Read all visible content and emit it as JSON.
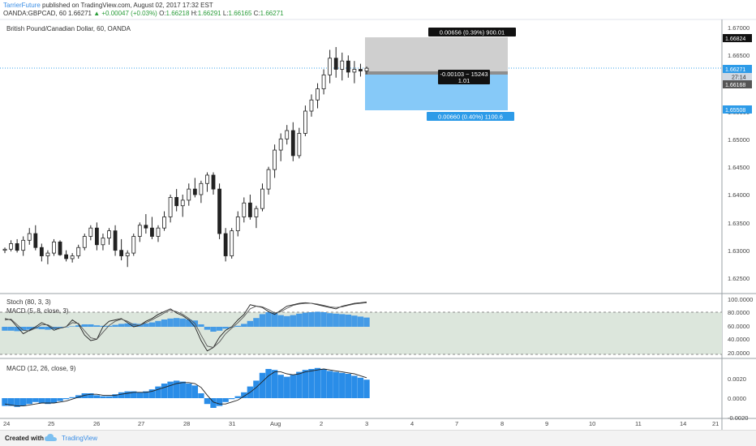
{
  "header": {
    "author": "TarrierFuture",
    "published_text": "published on TradingView.com, August 02, 2017 17:32 EST",
    "symbol_line": "OANDA:GBPCAD, 60",
    "last_price": "1.66271",
    "change": "▲ +0.00047 (+0.03%)",
    "open_label": "O:",
    "open": "1.66218",
    "high_label": "H:",
    "high": "1.66291",
    "low_label": "L:",
    "low": "1.66165",
    "close_label": "C:",
    "close": "1.66271"
  },
  "main_pane": {
    "title": "British Pound/Canadian Dollar, 60, OANDA",
    "price_ticks": [
      "1.67000",
      "1.66500",
      "1.65500",
      "1.65000",
      "1.64500",
      "1.64000",
      "1.63500",
      "1.63000",
      "1.62500"
    ],
    "price_tick_values": [
      1.67,
      1.665,
      1.655,
      1.65,
      1.645,
      1.64,
      1.635,
      1.63,
      1.625
    ],
    "tags": {
      "target": "1.66824",
      "current": "1.66271",
      "countdown": "27:14",
      "entry": "1.66168",
      "stop": "1.65508"
    },
    "position_tool": {
      "profit_label": "0.00656 (0.39%) 900.01",
      "center_label_1": "-0.00103 ~ 15243",
      "center_label_2": "1.01",
      "loss_label": "0.00660 (0.40%) 1100.6"
    }
  },
  "stoch_pane": {
    "title": "Stoch (80, 3, 3)",
    "sub_title": "MACD (5, 8, close, 3)",
    "ticks": [
      "100.0000",
      "80.0000",
      "60.0000",
      "40.0000",
      "20.0000"
    ]
  },
  "macd_pane": {
    "title": "MACD (12, 26, close, 9)",
    "ticks": [
      "0.0020",
      "0.0000",
      "-0.0020"
    ]
  },
  "time_axis": {
    "labels": [
      "24",
      "25",
      "26",
      "27",
      "28",
      "31",
      "Aug",
      "2",
      "3",
      "4",
      "7",
      "8",
      "9",
      "10",
      "11",
      "14",
      "21"
    ]
  },
  "footer": {
    "created_with": "Created with",
    "brand": "TradingView"
  },
  "colors": {
    "candle": "#222222",
    "stoch_fill": "#dce6dc",
    "macd_hist": "#2a8de8",
    "profit_zone": "#cfcfcf",
    "loss_zone": "#86c9f8",
    "label_blue": "#2d9be8",
    "link": "#3a8ee6"
  },
  "chart_data": {
    "type": "candlestick",
    "description_free": true,
    "price_ohlc": [
      [
        1.63,
        1.6305,
        1.6295,
        1.6302
      ],
      [
        1.6302,
        1.6318,
        1.6298,
        1.6312
      ],
      [
        1.6312,
        1.632,
        1.6296,
        1.63
      ],
      [
        1.63,
        1.6325,
        1.629,
        1.6318
      ],
      [
        1.6318,
        1.634,
        1.631,
        1.633
      ],
      [
        1.633,
        1.6345,
        1.63,
        1.6305
      ],
      [
        1.6305,
        1.6312,
        1.628,
        1.629
      ],
      [
        1.629,
        1.63,
        1.6275,
        1.6295
      ],
      [
        1.6295,
        1.632,
        1.629,
        1.6315
      ],
      [
        1.6315,
        1.6318,
        1.629,
        1.6292
      ],
      [
        1.6292,
        1.63,
        1.628,
        1.6285
      ],
      [
        1.6285,
        1.6295,
        1.6278,
        1.629
      ],
      [
        1.629,
        1.631,
        1.6285,
        1.6305
      ],
      [
        1.6305,
        1.633,
        1.63,
        1.6325
      ],
      [
        1.6325,
        1.6345,
        1.6318,
        1.634
      ],
      [
        1.634,
        1.635,
        1.63,
        1.631
      ],
      [
        1.631,
        1.633,
        1.63,
        1.6322
      ],
      [
        1.6322,
        1.634,
        1.631,
        1.6335
      ],
      [
        1.6335,
        1.6345,
        1.629,
        1.63
      ],
      [
        1.63,
        1.632,
        1.6282,
        1.629
      ],
      [
        1.629,
        1.63,
        1.627,
        1.6295
      ],
      [
        1.6295,
        1.633,
        1.629,
        1.6325
      ],
      [
        1.6325,
        1.635,
        1.6315,
        1.6345
      ],
      [
        1.6345,
        1.6365,
        1.633,
        1.634
      ],
      [
        1.634,
        1.636,
        1.632,
        1.6325
      ],
      [
        1.6325,
        1.6345,
        1.6315,
        1.634
      ],
      [
        1.634,
        1.637,
        1.6335,
        1.636
      ],
      [
        1.636,
        1.64,
        1.635,
        1.6395
      ],
      [
        1.6395,
        1.641,
        1.637,
        1.638
      ],
      [
        1.638,
        1.64,
        1.636,
        1.639
      ],
      [
        1.639,
        1.642,
        1.638,
        1.641
      ],
      [
        1.641,
        1.643,
        1.6395,
        1.64
      ],
      [
        1.64,
        1.6425,
        1.6385,
        1.642
      ],
      [
        1.642,
        1.644,
        1.6405,
        1.6435
      ],
      [
        1.6435,
        1.644,
        1.64,
        1.641
      ],
      [
        1.641,
        1.642,
        1.632,
        1.633
      ],
      [
        1.633,
        1.634,
        1.628,
        1.629
      ],
      [
        1.629,
        1.634,
        1.6285,
        1.6335
      ],
      [
        1.6335,
        1.637,
        1.6325,
        1.636
      ],
      [
        1.636,
        1.6395,
        1.635,
        1.6385
      ],
      [
        1.6385,
        1.64,
        1.6355,
        1.636
      ],
      [
        1.636,
        1.638,
        1.634,
        1.6375
      ],
      [
        1.6375,
        1.642,
        1.637,
        1.641
      ],
      [
        1.641,
        1.645,
        1.64,
        1.6445
      ],
      [
        1.6445,
        1.649,
        1.643,
        1.648
      ],
      [
        1.648,
        1.651,
        1.646,
        1.65
      ],
      [
        1.65,
        1.6525,
        1.649,
        1.6515
      ],
      [
        1.6515,
        1.653,
        1.646,
        1.647
      ],
      [
        1.647,
        1.652,
        1.6465,
        1.651
      ],
      [
        1.651,
        1.656,
        1.6505,
        1.655
      ],
      [
        1.655,
        1.658,
        1.654,
        1.657
      ],
      [
        1.657,
        1.66,
        1.6555,
        1.659
      ],
      [
        1.659,
        1.6625,
        1.658,
        1.6615
      ],
      [
        1.6615,
        1.666,
        1.66,
        1.6645
      ],
      [
        1.6645,
        1.6665,
        1.661,
        1.6625
      ],
      [
        1.6625,
        1.6655,
        1.6605,
        1.664
      ],
      [
        1.664,
        1.665,
        1.661,
        1.662
      ],
      [
        1.662,
        1.664,
        1.66,
        1.6625
      ],
      [
        1.6625,
        1.6635,
        1.6612,
        1.6622
      ],
      [
        1.6622,
        1.663,
        1.6616,
        1.6627
      ]
    ],
    "stoch_k": [
      72,
      70,
      60,
      50,
      55,
      60,
      66,
      62,
      55,
      58,
      60,
      70,
      64,
      48,
      40,
      42,
      60,
      68,
      70,
      72,
      66,
      60,
      62,
      68,
      72,
      78,
      82,
      86,
      80,
      76,
      70,
      60,
      40,
      25,
      30,
      45,
      55,
      60,
      70,
      78,
      92,
      90,
      88,
      82,
      78,
      84,
      90,
      92,
      94,
      95,
      94,
      92,
      90,
      88,
      86,
      90,
      92,
      94,
      95,
      96
    ],
    "stoch_d": [
      70,
      71,
      63,
      55,
      54,
      58,
      63,
      63,
      58,
      58,
      60,
      66,
      65,
      54,
      44,
      42,
      52,
      62,
      68,
      71,
      68,
      63,
      62,
      66,
      70,
      75,
      80,
      84,
      82,
      78,
      72,
      65,
      48,
      32,
      30,
      38,
      50,
      58,
      66,
      75,
      86,
      90,
      89,
      85,
      80,
      82,
      87,
      91,
      93,
      94,
      94,
      93,
      91,
      89,
      88,
      89,
      91,
      93,
      94,
      95
    ],
    "macd_hist": [
      -0.0008,
      -0.0008,
      -0.0009,
      -0.0008,
      -0.0006,
      -0.0004,
      -0.0005,
      -0.0006,
      -0.0005,
      -0.0003,
      -0.0001,
      0.0001,
      0.0003,
      0.0005,
      0.0005,
      0.0003,
      0.0002,
      0.0002,
      0.0004,
      0.0006,
      0.0007,
      0.0007,
      0.0006,
      0.0007,
      0.0009,
      0.0012,
      0.0015,
      0.0017,
      0.0018,
      0.0017,
      0.0015,
      0.0013,
      0.0005,
      -0.0006,
      -0.001,
      -0.0008,
      -0.0004,
      -0.0001,
      0.0002,
      0.0006,
      0.0012,
      0.0018,
      0.0026,
      0.003,
      0.0029,
      0.0024,
      0.0022,
      0.0024,
      0.0027,
      0.0029,
      0.003,
      0.0031,
      0.003,
      0.0028,
      0.0027,
      0.0026,
      0.0025,
      0.0023,
      0.0021,
      0.0019
    ],
    "macd_signal": [
      -0.0006,
      -0.0007,
      -0.0008,
      -0.0008,
      -0.0007,
      -0.0006,
      -0.0005,
      -0.0005,
      -0.0005,
      -0.0004,
      -0.0003,
      -0.0001,
      0.0001,
      0.0003,
      0.0004,
      0.0004,
      0.0003,
      0.0003,
      0.0003,
      0.0004,
      0.0005,
      0.0006,
      0.0006,
      0.0006,
      0.0007,
      0.0009,
      0.0011,
      0.0013,
      0.0015,
      0.0016,
      0.0016,
      0.0015,
      0.0011,
      0.0003,
      -0.0004,
      -0.0006,
      -0.0006,
      -0.0004,
      -0.0002,
      0.0002,
      0.0006,
      0.0011,
      0.0017,
      0.0023,
      0.0027,
      0.0027,
      0.0025,
      0.0024,
      0.0025,
      0.0027,
      0.0028,
      0.0029,
      0.003,
      0.0029,
      0.0028,
      0.0027,
      0.0026,
      0.0025,
      0.0023,
      0.0021
    ]
  }
}
